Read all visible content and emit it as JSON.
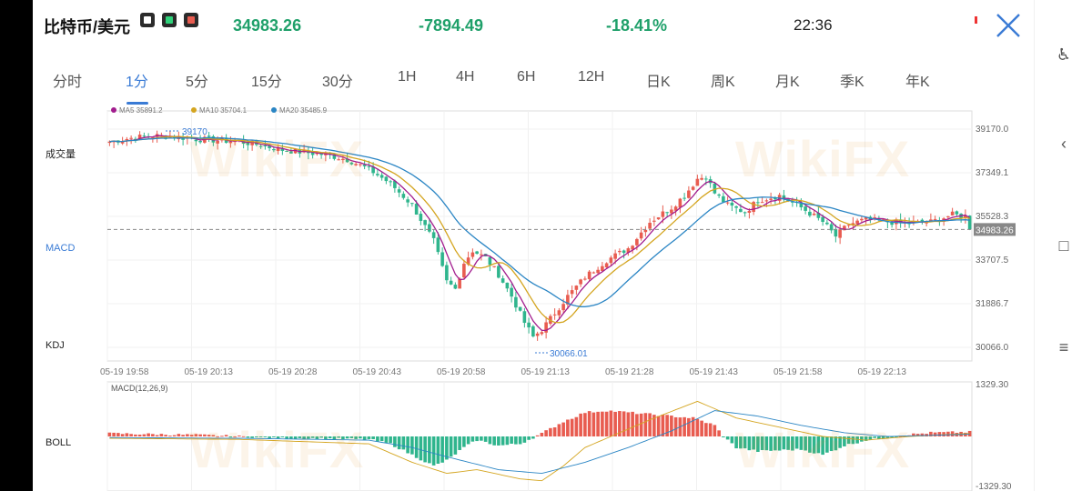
{
  "header": {
    "pair": "比特币/美元",
    "last_price": "34983.26",
    "change": "-7894.49",
    "change_pct": "-18.41%",
    "time": "22:36"
  },
  "tabs": [
    {
      "label": "分时",
      "active": false
    },
    {
      "label": "1分",
      "active": true
    },
    {
      "label": "5分",
      "active": false
    },
    {
      "label": "15分",
      "active": false
    },
    {
      "label": "30分",
      "active": false
    },
    {
      "label": "1H",
      "active": false
    },
    {
      "label": "4H",
      "active": false
    },
    {
      "label": "6H",
      "active": false
    },
    {
      "label": "12H",
      "active": false
    },
    {
      "label": "日K",
      "active": false
    },
    {
      "label": "周K",
      "active": false
    },
    {
      "label": "月K",
      "active": false
    },
    {
      "label": "季K",
      "active": false
    },
    {
      "label": "年K",
      "active": false
    }
  ],
  "side_indicators": {
    "volume": "成交量",
    "macd": "MACD",
    "kdj": "KDJ",
    "boll": "BOLL"
  },
  "colors": {
    "up": "#e85c50",
    "down": "#2fb58d",
    "ma5": "#a21d8e",
    "ma10": "#d4a520",
    "ma20": "#2a85c4",
    "accent": "#3a7bd5"
  },
  "watermark": "WikiFX",
  "chart_data": {
    "type": "candlestick",
    "legend": [
      {
        "label": "MA5 35891.2",
        "color": "#a21d8e"
      },
      {
        "label": "MA10 35704.1",
        "color": "#d4a520"
      },
      {
        "label": "MA20 35485.9",
        "color": "#2a85c4"
      }
    ],
    "ylim": [
      30066.0,
      39170.0
    ],
    "y_ticks": [
      "39170.0",
      "37349.1",
      "35528.3",
      "33707.5",
      "31886.7",
      "30066.0"
    ],
    "x_ticks": [
      "05-19 19:58",
      "05-19 20:13",
      "05-19 20:28",
      "05-19 20:43",
      "05-19 20:58",
      "05-19 21:13",
      "05-19 21:28",
      "05-19 21:43",
      "05-19 21:58",
      "05-19 22:13"
    ],
    "last_price_label": "34983.26",
    "last_price": 34983.26,
    "high_marker": "39170",
    "low_marker": "30066.01",
    "close_path": [
      [
        0,
        38650
      ],
      [
        5,
        38800
      ],
      [
        10,
        38900
      ],
      [
        15,
        38850
      ],
      [
        20,
        38750
      ],
      [
        25,
        38700
      ],
      [
        30,
        38650
      ],
      [
        35,
        38500
      ],
      [
        40,
        38300
      ],
      [
        45,
        38200
      ],
      [
        50,
        38100
      ],
      [
        55,
        37900
      ],
      [
        60,
        37500
      ],
      [
        65,
        36900
      ],
      [
        70,
        36000
      ],
      [
        75,
        34500
      ],
      [
        78,
        32800
      ],
      [
        80,
        32500
      ],
      [
        82,
        33600
      ],
      [
        84,
        34100
      ],
      [
        87,
        33800
      ],
      [
        90,
        33100
      ],
      [
        93,
        32200
      ],
      [
        96,
        31100
      ],
      [
        98,
        30500
      ],
      [
        100,
        30800
      ],
      [
        103,
        31500
      ],
      [
        106,
        32200
      ],
      [
        110,
        33000
      ],
      [
        115,
        33700
      ],
      [
        120,
        34200
      ],
      [
        125,
        35300
      ],
      [
        130,
        35900
      ],
      [
        133,
        36400
      ],
      [
        136,
        37100
      ],
      [
        138,
        37200
      ],
      [
        140,
        36500
      ],
      [
        143,
        36000
      ],
      [
        147,
        35700
      ],
      [
        150,
        36200
      ],
      [
        155,
        36400
      ],
      [
        160,
        35900
      ],
      [
        165,
        35300
      ],
      [
        168,
        34700
      ],
      [
        171,
        35200
      ],
      [
        175,
        35400
      ],
      [
        180,
        35300
      ],
      [
        185,
        35250
      ],
      [
        190,
        35300
      ],
      [
        195,
        35600
      ],
      [
        199,
        35500
      ]
    ],
    "macd_label": "MACD(12,26,9)",
    "macd_ylim": [
      -1329.3,
      1329.3
    ],
    "macd_ticks": [
      "1329.30",
      "-1329.30"
    ],
    "macd_hist_path": [
      [
        0,
        80
      ],
      [
        20,
        40
      ],
      [
        40,
        -40
      ],
      [
        60,
        -80
      ],
      [
        65,
        -200
      ],
      [
        70,
        -500
      ],
      [
        75,
        -800
      ],
      [
        78,
        -650
      ],
      [
        82,
        -300
      ],
      [
        85,
        -100
      ],
      [
        90,
        -250
      ],
      [
        95,
        -200
      ],
      [
        100,
        80
      ],
      [
        105,
        400
      ],
      [
        110,
        650
      ],
      [
        115,
        700
      ],
      [
        125,
        600
      ],
      [
        135,
        500
      ],
      [
        140,
        300
      ],
      [
        142,
        0
      ],
      [
        145,
        -300
      ],
      [
        150,
        -400
      ],
      [
        160,
        -350
      ],
      [
        165,
        -500
      ],
      [
        170,
        -250
      ],
      [
        175,
        -100
      ],
      [
        185,
        50
      ],
      [
        190,
        100
      ],
      [
        199,
        120
      ]
    ],
    "dif_path": [
      [
        0,
        -50
      ],
      [
        30,
        -80
      ],
      [
        60,
        -200
      ],
      [
        70,
        -700
      ],
      [
        78,
        -1000
      ],
      [
        85,
        -900
      ],
      [
        95,
        -1150
      ],
      [
        100,
        -1200
      ],
      [
        105,
        -800
      ],
      [
        110,
        -300
      ],
      [
        118,
        100
      ],
      [
        125,
        450
      ],
      [
        136,
        950
      ],
      [
        145,
        500
      ],
      [
        155,
        250
      ],
      [
        165,
        0
      ],
      [
        175,
        -100
      ],
      [
        185,
        0
      ],
      [
        199,
        80
      ]
    ],
    "dea_path": [
      [
        0,
        -30
      ],
      [
        30,
        -50
      ],
      [
        60,
        -100
      ],
      [
        70,
        -300
      ],
      [
        78,
        -550
      ],
      [
        90,
        -900
      ],
      [
        100,
        -1000
      ],
      [
        110,
        -700
      ],
      [
        120,
        -300
      ],
      [
        130,
        150
      ],
      [
        140,
        700
      ],
      [
        150,
        550
      ],
      [
        160,
        300
      ],
      [
        170,
        100
      ],
      [
        180,
        0
      ],
      [
        190,
        30
      ],
      [
        199,
        60
      ]
    ]
  }
}
